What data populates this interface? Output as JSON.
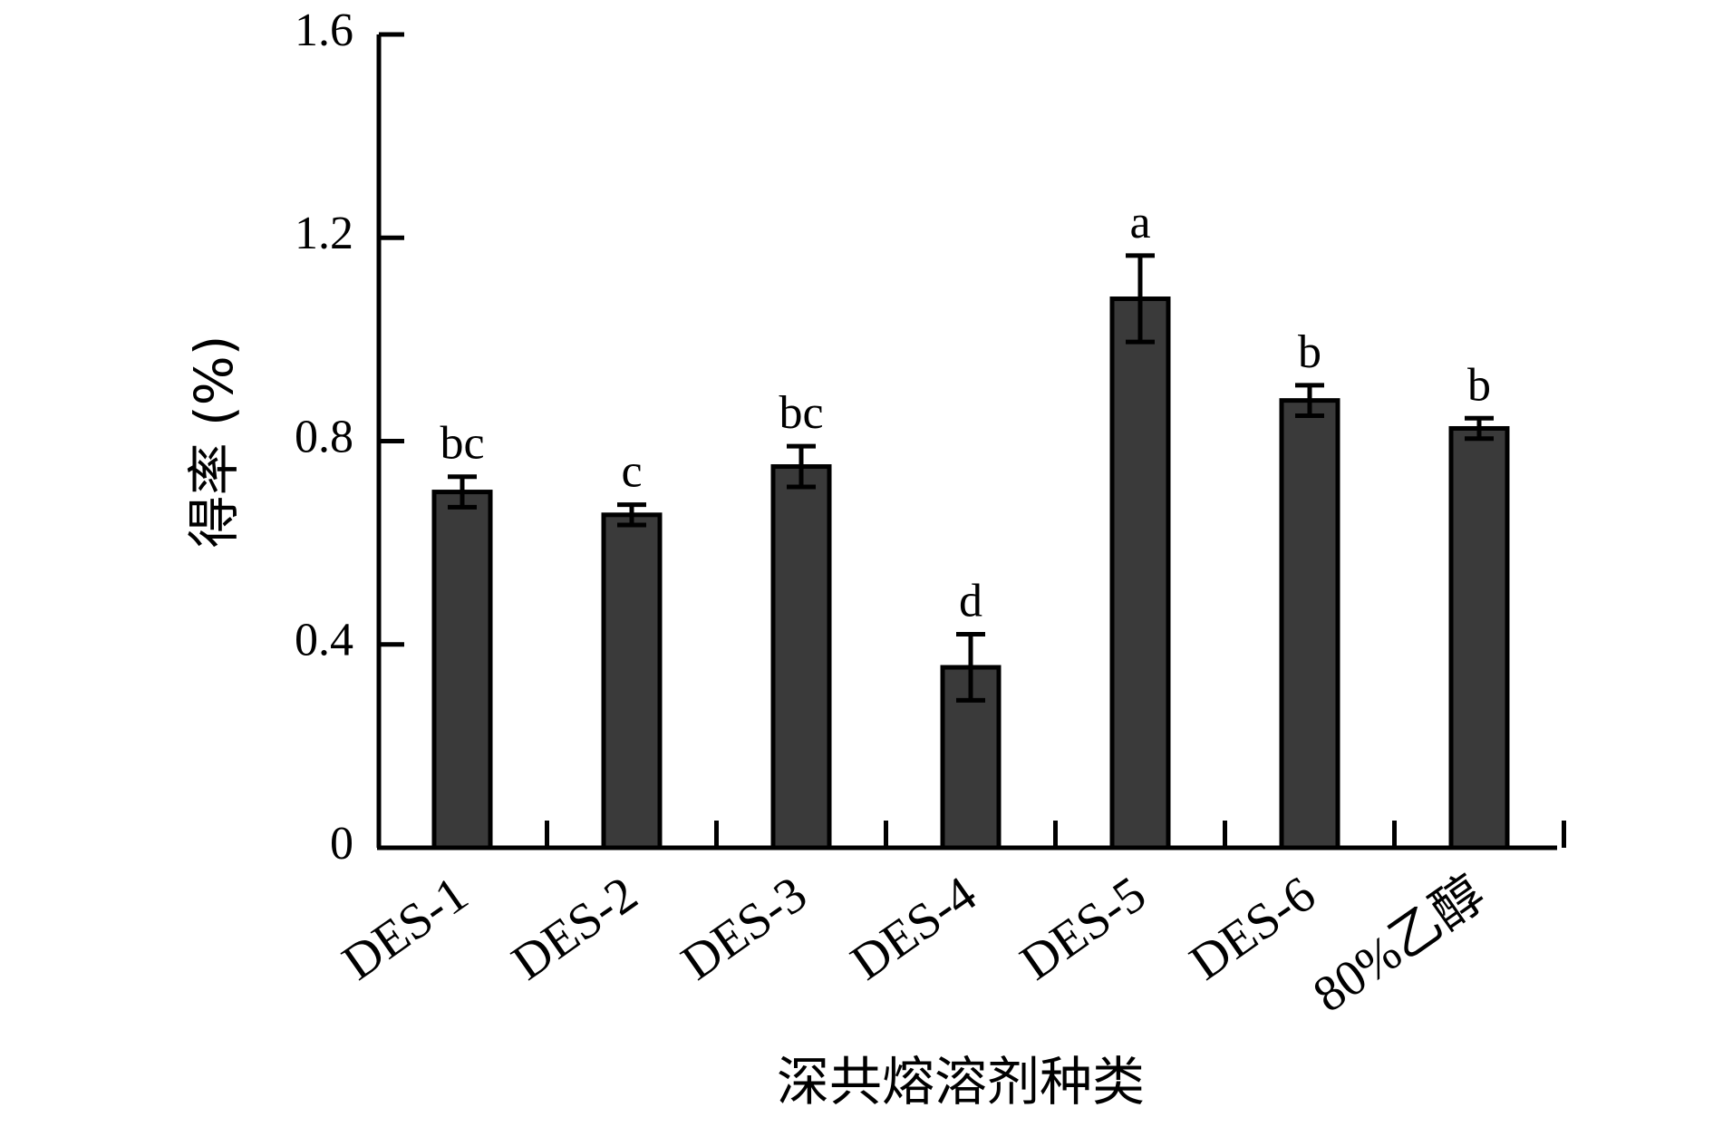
{
  "chart_data": {
    "type": "bar",
    "title": "",
    "xlabel": "深共熔溶剂种类",
    "ylabel": "得率 (%)",
    "ylim": [
      0,
      1.6
    ],
    "yticks": [
      "0",
      "0.4",
      "0.8",
      "1.2",
      "1.6"
    ],
    "ytick_values": [
      0,
      0.4,
      0.8,
      1.2,
      1.6
    ],
    "categories": [
      "DES-1",
      "DES-2",
      "DES-3",
      "DES-4",
      "DES-5",
      "DES-6",
      "80%乙醇"
    ],
    "values": [
      0.7,
      0.655,
      0.75,
      0.355,
      1.08,
      0.88,
      0.825
    ],
    "errors": [
      0.03,
      0.02,
      0.04,
      0.065,
      0.085,
      0.03,
      0.02
    ],
    "significance_letters": [
      "bc",
      "c",
      "bc",
      "d",
      "a",
      "b",
      "b"
    ],
    "grid": false,
    "legend": "none",
    "colors": {
      "bar_fill": "#3a3a3a",
      "bar_edge": "#000000",
      "axis": "#000000"
    }
  }
}
